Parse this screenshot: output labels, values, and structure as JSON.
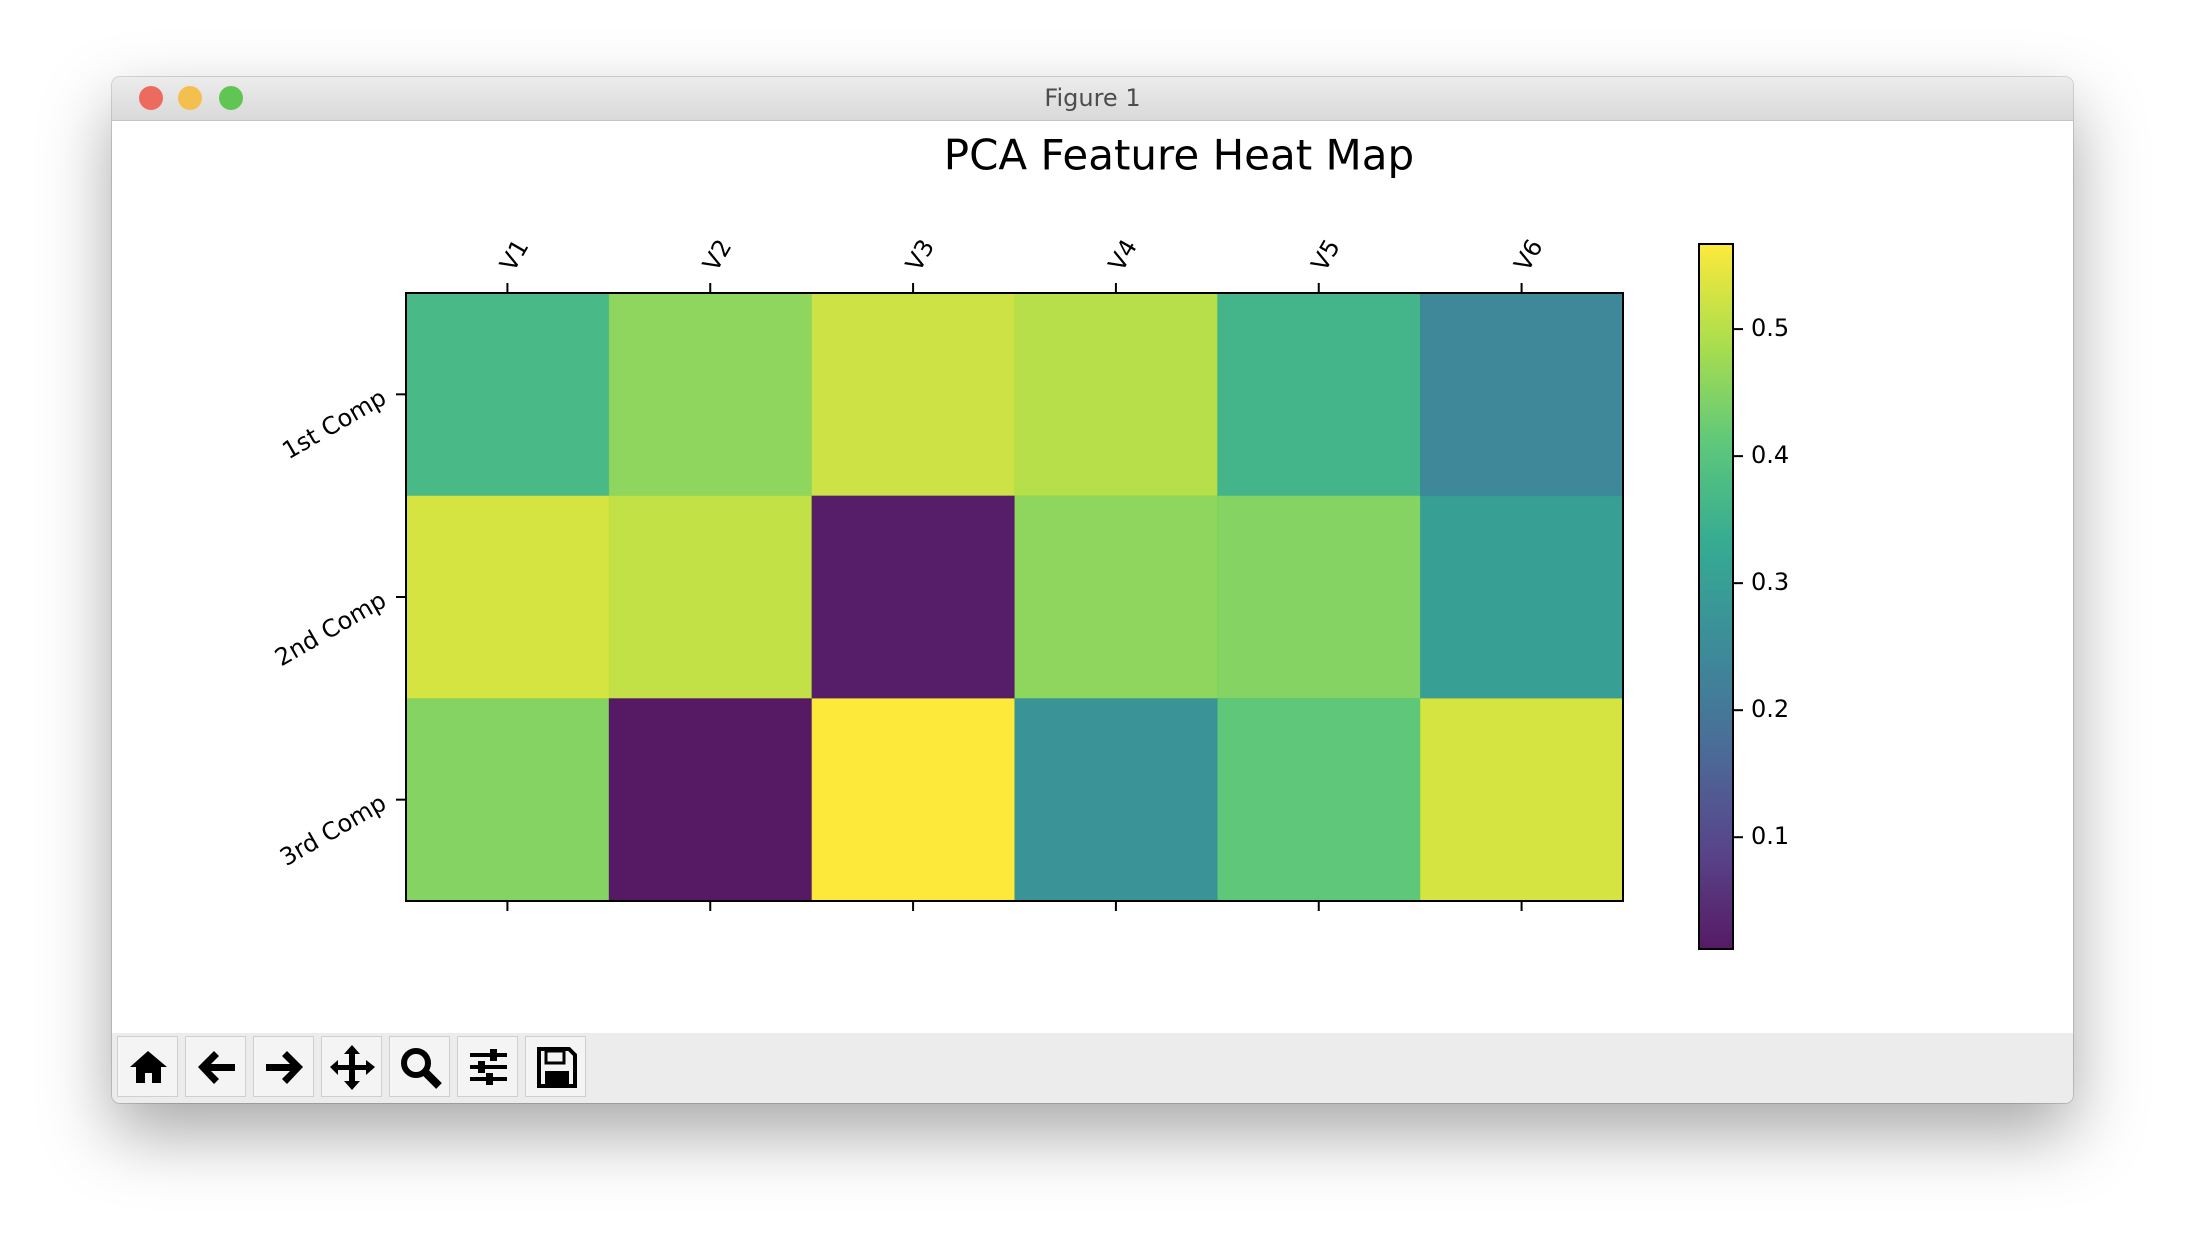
{
  "window_title": "Figure 1",
  "chart_data": {
    "type": "heatmap",
    "title": "PCA Feature Heat Map",
    "x_categories": [
      "V1",
      "V2",
      "V3",
      "V4",
      "V5",
      "V6"
    ],
    "y_categories": [
      "1st Comp",
      "2nd Comp",
      "3rd Comp"
    ],
    "values": [
      [
        0.37,
        0.46,
        0.52,
        0.5,
        0.36,
        0.24
      ],
      [
        0.53,
        0.51,
        0.02,
        0.46,
        0.45,
        0.3
      ],
      [
        0.45,
        0.012,
        0.567,
        0.27,
        0.41,
        0.53
      ]
    ],
    "cmap": "viridis",
    "clim": [
      0.012,
      0.567
    ],
    "colorbar_ticks": [
      0.1,
      0.2,
      0.3,
      0.4,
      0.5
    ]
  }
}
